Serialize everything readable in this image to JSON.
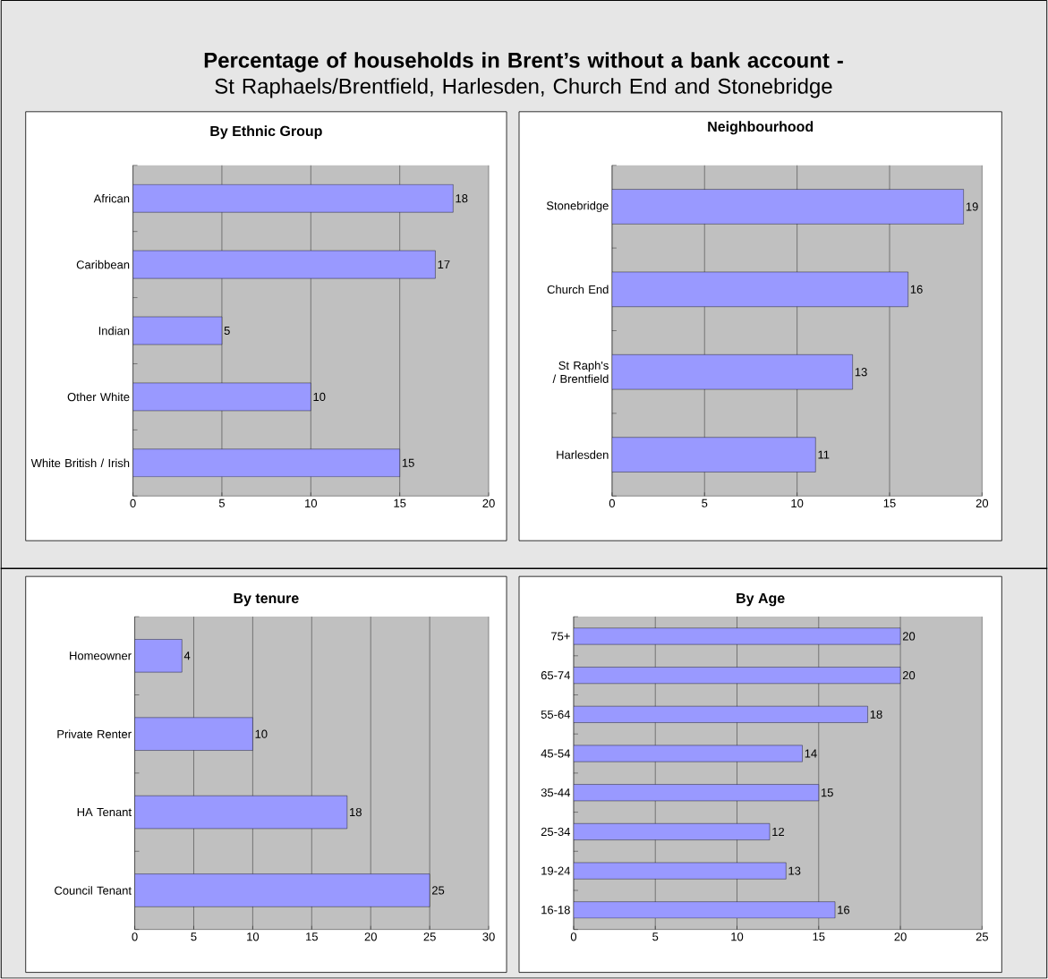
{
  "chart_data": [
    {
      "type": "other",
      "title": "**Percentage of households in Brent’s without a bank account -** St Raphaels/Brentfield, Harlesden, Church End and Stonebridge"
    },
    {
      "type": "bar",
      "orientation": "horizontal",
      "title": "By Ethnic Group",
      "categories": [
        "African",
        "Caribbean",
        "Indian",
        "Other White",
        "White British / Irish"
      ],
      "values": [
        18,
        17,
        5,
        10,
        15
      ],
      "color": "#9999ff",
      "xlim": [
        0,
        20
      ],
      "xticks": [
        0,
        5,
        10,
        15,
        20
      ],
      "grid": "x",
      "data_labels": true
    },
    {
      "type": "bar",
      "orientation": "horizontal",
      "title": "Neighbourhood",
      "categories": [
        "Stonebridge",
        "Church End",
        "St Raph's / Brentfield",
        "Harlesden"
      ],
      "values": [
        19,
        16,
        13,
        11
      ],
      "color": "#9999ff",
      "xlim": [
        0,
        20
      ],
      "xticks": [
        0,
        5,
        10,
        15,
        20
      ],
      "grid": "x",
      "data_labels": true
    },
    {
      "type": "bar",
      "orientation": "horizontal",
      "title": "By tenure",
      "categories": [
        "Homeowner",
        "Private Renter",
        "HA Tenant",
        "Council Tenant"
      ],
      "values": [
        4,
        10,
        18,
        25
      ],
      "color": "#9999ff",
      "xlim": [
        0,
        30
      ],
      "xticks": [
        0,
        5,
        10,
        15,
        20,
        25,
        30
      ],
      "grid": "x",
      "data_labels": true
    },
    {
      "type": "bar",
      "orientation": "horizontal",
      "title": "By Age",
      "categories": [
        "75+",
        "65-74",
        "55-64",
        "45-54",
        "35-44",
        "25-34",
        "19-24",
        "16-18"
      ],
      "values": [
        20,
        20,
        18,
        14,
        15,
        12,
        13,
        16
      ],
      "color": "#9999ff",
      "xlim": [
        0,
        25
      ],
      "xticks": [
        0,
        5,
        10,
        15,
        20,
        25
      ],
      "grid": "x",
      "data_labels": true
    }
  ]
}
